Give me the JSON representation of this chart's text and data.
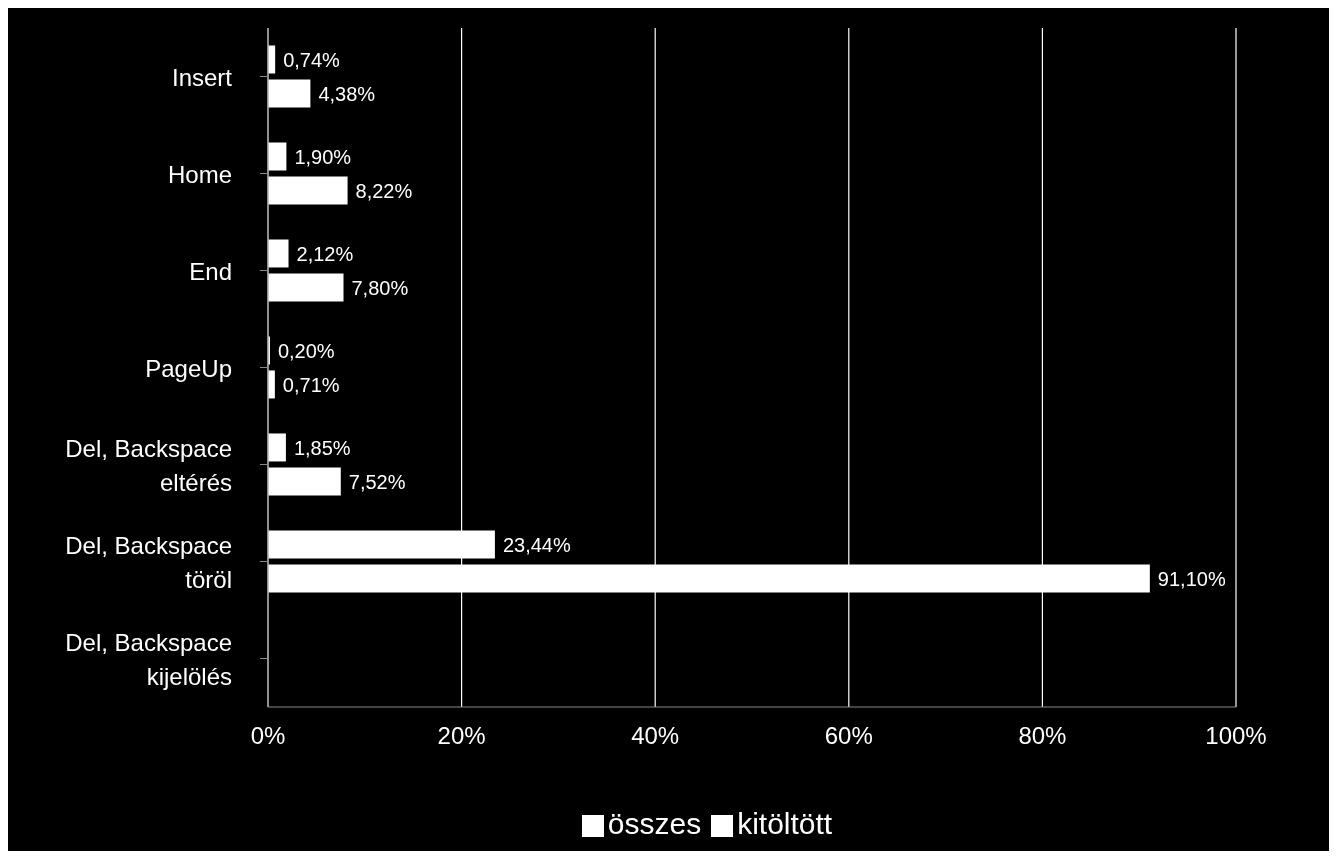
{
  "chart_data": {
    "type": "bar",
    "orientation": "horizontal",
    "categories": [
      "Insert",
      "Home",
      "End",
      "PageUp",
      "Del, Backspace eltérés",
      "Del, Backspace töröl",
      "Del, Backspace kijelölés"
    ],
    "series": [
      {
        "name": "összes",
        "color": "#ffffff",
        "values": [
          0.74,
          1.9,
          2.12,
          0.2,
          1.85,
          23.44,
          null
        ],
        "value_labels": [
          "0,74%",
          "1,90%",
          "2,12%",
          "0,20%",
          "1,85%",
          "23,44%",
          null
        ]
      },
      {
        "name": "kitöltött",
        "color": "#ffffff",
        "values": [
          4.38,
          8.22,
          7.8,
          0.71,
          7.52,
          91.1,
          null
        ],
        "value_labels": [
          "4,38%",
          "8,22%",
          "7,80%",
          "0,71%",
          "7,52%",
          "91,10%",
          null
        ]
      }
    ],
    "xlim": [
      0,
      100
    ],
    "xticks": [
      {
        "value": 0,
        "label": "0%"
      },
      {
        "value": 20,
        "label": "20%"
      },
      {
        "value": 40,
        "label": "40%"
      },
      {
        "value": 60,
        "label": "60%"
      },
      {
        "value": 80,
        "label": "80%"
      },
      {
        "value": 100,
        "label": "100%"
      }
    ],
    "grid": "x",
    "legend": "bottom"
  }
}
